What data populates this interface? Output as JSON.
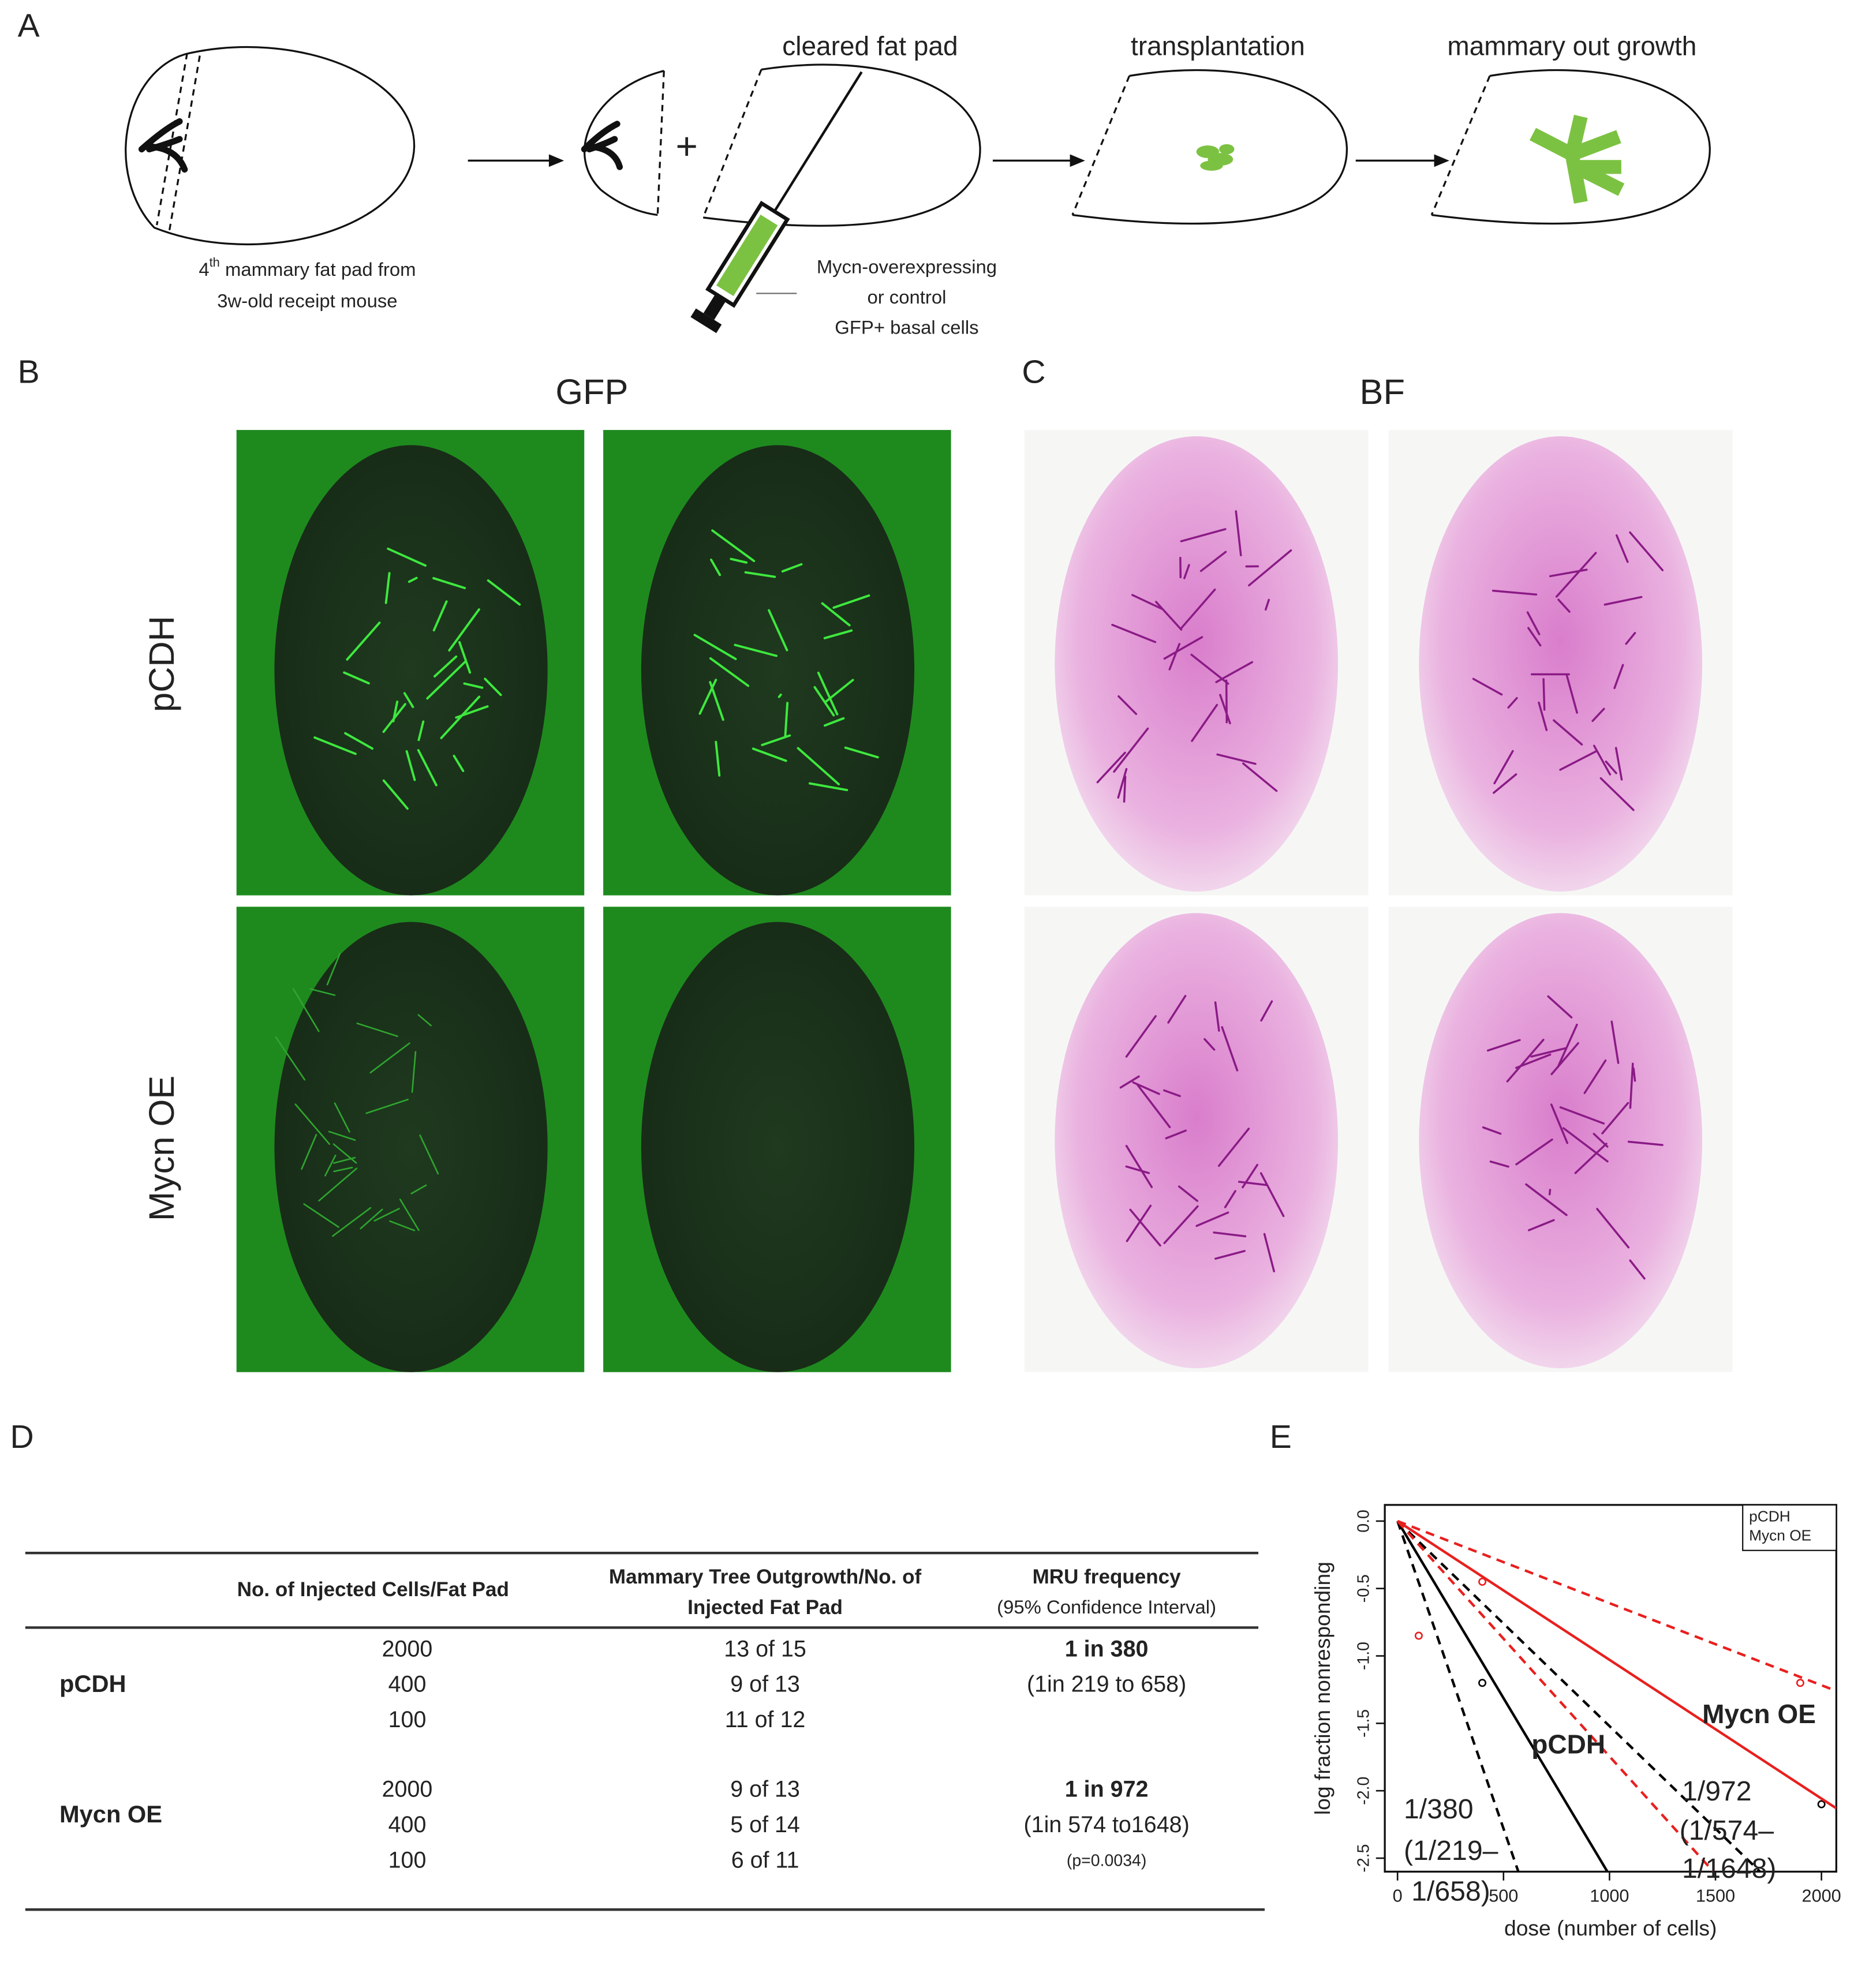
{
  "panels": {
    "labels": [
      "A",
      "B",
      "C",
      "D",
      "E"
    ]
  },
  "diagram": {
    "steps": [
      "cleared fat pad",
      "transplantation",
      "mammary out growth"
    ],
    "plus": "+",
    "donor_caption": {
      "lead": "4",
      "sup": "th",
      "rest": " mammary fat pad from",
      "line2": "3w-old receipt mouse"
    },
    "injection_caption": [
      "Mycn-overexpressing",
      "or control",
      "GFP+ basal cells"
    ]
  },
  "images": {
    "channels": [
      "GFP",
      "BF"
    ],
    "rows": [
      "pCDH",
      "Mycn OE"
    ]
  },
  "table": {
    "headers": [
      [
        "No. of Injected Cells/Fat Pad"
      ],
      [
        "Mammary Tree Outgrowth/No. of",
        "Injected Fat Pad"
      ],
      [
        "MRU frequency",
        "(95% Confidence Interval)"
      ]
    ],
    "groups": [
      {
        "name": "pCDH",
        "rows": [
          [
            "2000",
            "13 of 15"
          ],
          [
            "400",
            "9 of 13"
          ],
          [
            "100",
            "11 of 12"
          ]
        ],
        "frequency": [
          "1 in 380",
          "(1in 219 to 658)"
        ]
      },
      {
        "name": "Mycn OE",
        "rows": [
          [
            "2000",
            "9 of 13"
          ],
          [
            "400",
            "5 of 14"
          ],
          [
            "100",
            "6 of 11"
          ]
        ],
        "frequency": [
          "1 in 972",
          "(1in 574 to1648)",
          "(p=0.0034)"
        ]
      }
    ]
  },
  "chart_data": {
    "type": "line",
    "xlabel": "dose (number of cells)",
    "ylabel": "log fraction nonresponding",
    "xlim": [
      -60,
      2070
    ],
    "ylim": [
      -2.6,
      0.12
    ],
    "xticks": [
      0,
      500,
      1000,
      1500,
      2000
    ],
    "yticks": [
      {
        "value": 0,
        "label": "0.0"
      },
      -0.5,
      {
        "value": -1,
        "label": "-1.0"
      },
      -1.5,
      {
        "value": -2,
        "label": "-2.0"
      },
      -2.5
    ],
    "legend": "upper right",
    "series": [
      {
        "name": "pCDH",
        "color": "#000000",
        "x": [
          0,
          990
        ],
        "values": [
          0,
          -2.6
        ],
        "ci": [
          {
            "x": [
              0,
              570
            ],
            "values": [
              0,
              -2.6
            ]
          },
          {
            "x": [
              0,
              1710
            ],
            "values": [
              0,
              -2.6
            ]
          }
        ],
        "points": {
          "x": [
            400,
            2000
          ],
          "values": [
            -1.2,
            -2.1
          ]
        }
      },
      {
        "name": "Mycn OE",
        "color": "#e8201e",
        "x": [
          0,
          2070
        ],
        "values": [
          0,
          -2.13
        ],
        "ci": [
          {
            "x": [
              0,
              1490
            ],
            "values": [
              0,
              -2.6
            ]
          },
          {
            "x": [
              0,
              2070
            ],
            "values": [
              0,
              -1.26
            ]
          }
        ],
        "points": {
          "x": [
            100,
            400,
            1900
          ],
          "values": [
            -0.85,
            -0.45,
            -1.2
          ]
        }
      }
    ],
    "annotations": [
      {
        "text": "pCDH",
        "color": "#000000"
      },
      {
        "text": "Mycn OE",
        "color": "#e8201e"
      },
      {
        "text": "1/380",
        "color": "#000000"
      },
      {
        "text": "(1/219–",
        "color": "#000000"
      },
      {
        "text": "1/658)",
        "color": "#000000"
      },
      {
        "text": "1/972",
        "color": "#e8201e"
      },
      {
        "text": "(1/574–",
        "color": "#e8201e"
      },
      {
        "text": "1/1648)",
        "color": "#e8201e"
      }
    ]
  }
}
